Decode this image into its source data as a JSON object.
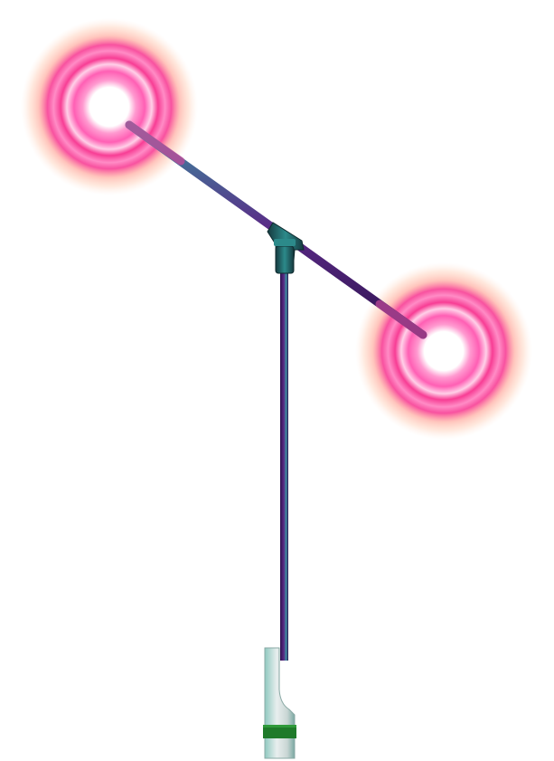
{
  "illustration": {
    "subject": "boom-stand-with-glowing-lights",
    "colors": {
      "background": "#ffffff",
      "glow_core": "#ffffff",
      "glow_pink": "#ff5fb4",
      "glow_hot_pink": "#f7338f",
      "glow_orange_halo": "#ffb08a",
      "pole_dark": "#2e1250",
      "pole_purple": "#5a2a86",
      "pole_teal": "#3a8fa0",
      "connector_teal": "#2c8a8a",
      "connector_dark": "#163a3f",
      "base_gray": "#c9d6d4",
      "base_teal": "#8fc9c0",
      "base_band_green": "#1f7a2a"
    },
    "icons": {
      "left_light": "glow-light-icon",
      "right_light": "glow-light-icon",
      "connector": "t-joint-icon",
      "base": "stand-base-icon"
    }
  }
}
